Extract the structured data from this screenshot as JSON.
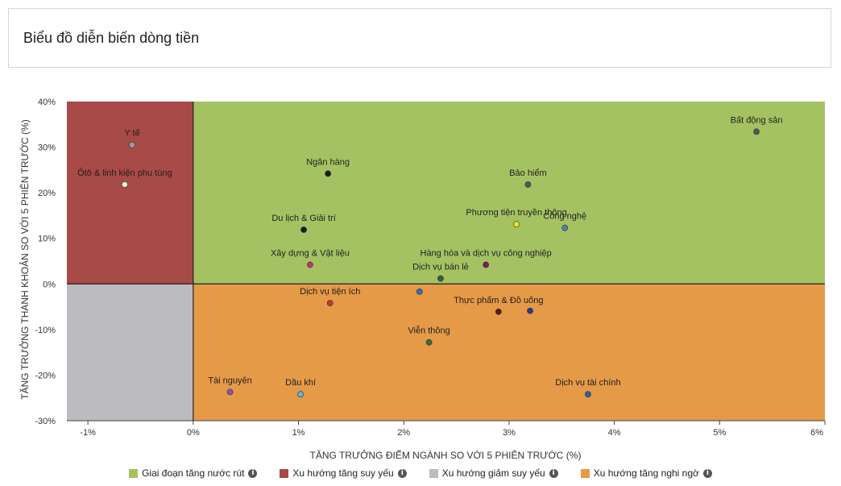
{
  "page": {
    "title": "Biểu đồ diễn biến dòng tiền"
  },
  "chart_data": {
    "type": "scatter",
    "xlabel": "TĂNG TRƯỞNG ĐIỂM NGÀNH SO VỚI 5 PHIÊN TRƯỚC (%)",
    "ylabel": "TĂNG TRƯỞNG THANH KHOẢN SO VỚI 5 PHIÊN TRƯỚC (%)",
    "xlim": [
      -1.2,
      6.0
    ],
    "ylim": [
      -30,
      40
    ],
    "xticks": [
      -1,
      0,
      1,
      2,
      3,
      4,
      5,
      6
    ],
    "yticks": [
      40,
      30,
      20,
      10,
      0,
      -10,
      -20,
      -30
    ],
    "xtick_labels": [
      "-1%",
      "0%",
      "1%",
      "2%",
      "3%",
      "4%",
      "5%",
      "6%"
    ],
    "ytick_labels": [
      "40%",
      "30%",
      "20%",
      "10%",
      "0%",
      "-10%",
      "-20%",
      "-30%"
    ],
    "quadrants": [
      {
        "name": "Giai đoạn tăng nước rút",
        "color": "#a5c263",
        "x": [
          0,
          6
        ],
        "y": [
          0,
          40
        ]
      },
      {
        "name": "Xu hướng tăng suy yếu",
        "color": "#a84a47",
        "x": [
          -1.2,
          0
        ],
        "y": [
          0,
          40
        ]
      },
      {
        "name": "Xu hướng giảm suy yếu",
        "color": "#bcbcc0",
        "x": [
          -1.2,
          0
        ],
        "y": [
          -30,
          0
        ]
      },
      {
        "name": "Xu hướng tăng nghi ngờ",
        "color": "#e59a48",
        "x": [
          0,
          6
        ],
        "y": [
          -30,
          0
        ]
      }
    ],
    "points": [
      {
        "label": "Y tế",
        "x": -0.58,
        "y": 30.5,
        "color": "#a09aa0"
      },
      {
        "label": "Ôtô & linh kiện phụ tùng",
        "x": -0.65,
        "y": 21.8,
        "color": "#f2f7d2"
      },
      {
        "label": "Ngân hàng",
        "x": 1.28,
        "y": 24.2,
        "color": "#1c1c1c"
      },
      {
        "label": "Bảo hiểm",
        "x": 3.18,
        "y": 21.8,
        "color": "#555555"
      },
      {
        "label": "Bất động sản",
        "x": 5.35,
        "y": 33.4,
        "color": "#555555"
      },
      {
        "label": "Công nghệ",
        "x": 3.53,
        "y": 12.3,
        "color": "#4f82b0"
      },
      {
        "label": "Du lịch & Giải trí",
        "x": 1.05,
        "y": 11.9,
        "color": "#1c1c1c"
      },
      {
        "label": "Xây dựng & Vật liệu",
        "x": 1.11,
        "y": 4.2,
        "color": "#c2336a"
      },
      {
        "label": "Hàng hóa và dịch vụ công nghiệp",
        "x": 2.78,
        "y": 4.2,
        "color": "#7a1c5a"
      },
      {
        "label": "Phương tiện truyền thông",
        "x": 3.07,
        "y": 13.1,
        "color": "#e6e41e"
      },
      {
        "label": "Dịch vụ bán lẻ",
        "x": 2.35,
        "y": 1.2,
        "color": "#2a6630"
      },
      {
        "label": "Dịch vụ tiện ích",
        "x": 1.3,
        "y": -4.2,
        "color": "#c0392b"
      },
      {
        "label": "Thực phẩm & Đồ uống",
        "x": 2.9,
        "y": -6.1,
        "color": "#6b1414"
      },
      {
        "label": "",
        "x": 3.2,
        "y": -5.9,
        "color": "#263e8c"
      },
      {
        "label": "",
        "x": 2.15,
        "y": -1.7,
        "color": "#3a6db3"
      },
      {
        "label": "Viễn thông",
        "x": 2.24,
        "y": -12.8,
        "color": "#3f6b2a"
      },
      {
        "label": "Tài nguyên",
        "x": 0.35,
        "y": -23.7,
        "color": "#8a4fb8"
      },
      {
        "label": "Dầu khí",
        "x": 1.02,
        "y": -24.2,
        "color": "#53b9e6"
      },
      {
        "label": "Dịch vụ tài chính",
        "x": 3.75,
        "y": -24.2,
        "color": "#2f5fb8"
      }
    ],
    "grid": false,
    "legend_position": "bottom"
  },
  "legend": {
    "items": [
      {
        "label": "Giai đoạn tăng nước rút",
        "color": "#a5c263",
        "info": "i"
      },
      {
        "label": "Xu hướng tăng suy yếu",
        "color": "#a84a47",
        "info": "i"
      },
      {
        "label": "Xu hướng giảm suy yếu",
        "color": "#bcbcc0",
        "info": "i"
      },
      {
        "label": "Xu hướng tăng nghi ngờ",
        "color": "#e59a48",
        "info": "i"
      }
    ]
  }
}
